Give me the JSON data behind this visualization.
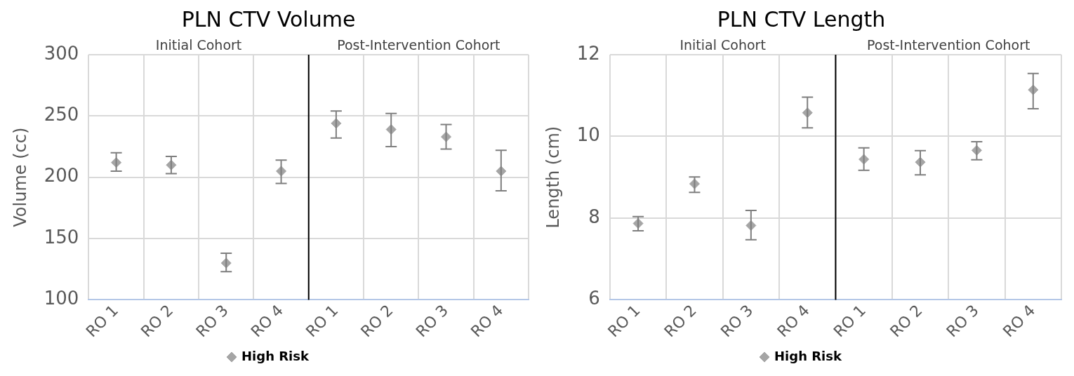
{
  "chart_data": [
    {
      "type": "scatter",
      "title": "PLN CTV Volume",
      "ylabel": "Volume (cc)",
      "categories": [
        "RO 1",
        "RO 2",
        "RO 3",
        "RO 4",
        "RO 1",
        "RO 2",
        "RO 3",
        "RO 4"
      ],
      "ylim": [
        100,
        300
      ],
      "yticks": [
        100,
        150,
        200,
        250,
        300
      ],
      "series": [
        {
          "name": "High Risk",
          "color": "#a5a5a5",
          "values": [
            212,
            210,
            130,
            205,
            244,
            239,
            233,
            205
          ],
          "errors": [
            [
              205,
              220
            ],
            [
              203,
              217
            ],
            [
              123,
              138
            ],
            [
              195,
              214
            ],
            [
              232,
              254
            ],
            [
              225,
              252
            ],
            [
              223,
              243
            ],
            [
              189,
              222
            ]
          ]
        }
      ],
      "ref_lines": [
        {
          "axis": "x",
          "value": "RO 4",
          "color": "#000000"
        }
      ],
      "annotations": [
        "Initial Cohort",
        "Post-Intervention Cohort"
      ],
      "grid": true,
      "legend": "bottom",
      "marker": "diamond"
    },
    {
      "type": "scatter",
      "title": "PLN CTV Length",
      "ylabel": "Length (cm)",
      "categories": [
        "RO 1",
        "RO 2",
        "RO 3",
        "RO 4",
        "RO 1",
        "RO 2",
        "RO 3",
        "RO 4"
      ],
      "ylim": [
        6,
        12
      ],
      "yticks": [
        6,
        8,
        10,
        12
      ],
      "series": [
        {
          "name": "High Risk",
          "color": "#a5a5a5",
          "values": [
            7.87,
            8.84,
            7.82,
            10.58,
            9.44,
            9.37,
            9.66,
            11.14
          ],
          "errors": [
            [
              7.69,
              8.04
            ],
            [
              8.63,
              9.01
            ],
            [
              7.47,
              8.19
            ],
            [
              10.21,
              10.96
            ],
            [
              9.17,
              9.72
            ],
            [
              9.06,
              9.65
            ],
            [
              9.43,
              9.87
            ],
            [
              10.68,
              11.54
            ]
          ]
        }
      ],
      "ref_lines": [
        {
          "axis": "x",
          "value": "RO 4",
          "color": "#000000"
        }
      ],
      "annotations": [
        "Initial Cohort",
        "Post-Intervention Cohort"
      ],
      "grid": true,
      "legend": "bottom",
      "marker": "diamond"
    }
  ]
}
